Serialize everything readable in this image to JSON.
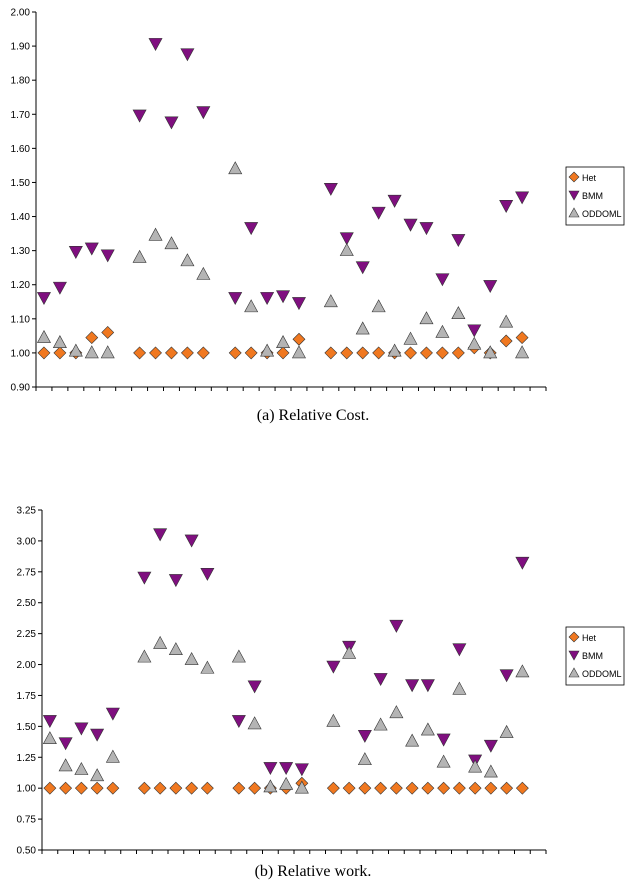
{
  "chart_data": [
    {
      "type": "scatter",
      "caption": "(a)  Relative Cost.",
      "y_ticks": [
        "2.00",
        "1.90",
        "1.80",
        "1.70",
        "1.60",
        "1.50",
        "1.40",
        "1.30",
        "1.20",
        "1.10",
        "1.00",
        "0.90"
      ],
      "ylim": [
        0.9,
        2.0
      ],
      "x": [
        1,
        2,
        3,
        4,
        5,
        7,
        8,
        9,
        10,
        11,
        13,
        14,
        15,
        16,
        17,
        19,
        20,
        21,
        22,
        23,
        24,
        25,
        26,
        27,
        28,
        29,
        30,
        31
      ],
      "legend_position": "right",
      "series": [
        {
          "name": "Het",
          "marker": "diamond",
          "color": "#f07820",
          "values": [
            1.0,
            1.0,
            1.0,
            1.045,
            1.06,
            1.0,
            1.0,
            1.0,
            1.0,
            1.0,
            1.0,
            1.0,
            1.0,
            1.0,
            1.04,
            1.0,
            1.0,
            1.0,
            1.0,
            1.0,
            1.0,
            1.0,
            1.0,
            1.0,
            1.015,
            1.0,
            1.035,
            1.045
          ]
        },
        {
          "name": "BMM",
          "marker": "triangle-down",
          "color": "#7f0f7f",
          "values": [
            1.16,
            1.19,
            1.295,
            1.305,
            1.285,
            1.695,
            1.905,
            1.675,
            1.875,
            1.705,
            1.16,
            1.365,
            1.16,
            1.165,
            1.145,
            1.48,
            1.335,
            1.25,
            1.41,
            1.445,
            1.375,
            1.365,
            1.215,
            1.33,
            1.065,
            1.195,
            1.43,
            1.455
          ]
        },
        {
          "name": "ODDOML",
          "marker": "triangle-up",
          "color": "#b4b4b4",
          "values": [
            1.045,
            1.03,
            1.005,
            1.0,
            1.0,
            1.28,
            1.345,
            1.32,
            1.27,
            1.23,
            1.54,
            1.135,
            1.005,
            1.03,
            1.0,
            1.15,
            1.3,
            1.07,
            1.135,
            1.005,
            1.04,
            1.1,
            1.06,
            1.115,
            1.025,
            1.0,
            1.09,
            1.0
          ]
        }
      ]
    },
    {
      "type": "scatter",
      "caption": "(b)  Relative work.",
      "y_ticks": [
        "3.25",
        "3.00",
        "2.75",
        "2.50",
        "2.25",
        "2.00",
        "1.75",
        "1.50",
        "1.25",
        "1.00",
        "0.75",
        "0.50"
      ],
      "ylim": [
        0.5,
        3.25
      ],
      "x": [
        1,
        2,
        3,
        4,
        5,
        7,
        8,
        9,
        10,
        11,
        13,
        14,
        15,
        16,
        17,
        19,
        20,
        21,
        22,
        23,
        24,
        25,
        26,
        27,
        28,
        29,
        30,
        31
      ],
      "legend_position": "right",
      "series": [
        {
          "name": "Het",
          "marker": "diamond",
          "color": "#f07820",
          "values": [
            1.0,
            1.0,
            1.0,
            1.0,
            1.0,
            1.0,
            1.0,
            1.0,
            1.0,
            1.0,
            1.0,
            1.0,
            1.0,
            1.0,
            1.04,
            1.0,
            1.0,
            1.0,
            1.0,
            1.0,
            1.0,
            1.0,
            1.0,
            1.0,
            1.0,
            1.0,
            1.0,
            1.0
          ]
        },
        {
          "name": "BMM",
          "marker": "triangle-down",
          "color": "#7f0f7f",
          "values": [
            1.54,
            1.36,
            1.48,
            1.43,
            1.6,
            2.7,
            3.05,
            2.68,
            3.0,
            2.73,
            1.54,
            1.82,
            1.16,
            1.16,
            1.15,
            1.98,
            2.14,
            1.42,
            1.88,
            2.31,
            1.83,
            1.83,
            1.39,
            2.12,
            1.22,
            1.34,
            1.91,
            2.82
          ]
        },
        {
          "name": "ODDOML",
          "marker": "triangle-up",
          "color": "#b4b4b4",
          "values": [
            1.4,
            1.18,
            1.15,
            1.1,
            1.25,
            2.06,
            2.17,
            2.12,
            2.04,
            1.97,
            2.06,
            1.52,
            1.01,
            1.03,
            1.0,
            1.54,
            2.09,
            1.23,
            1.51,
            1.61,
            1.38,
            1.47,
            1.21,
            1.8,
            1.17,
            1.13,
            1.45,
            1.94
          ]
        }
      ]
    }
  ]
}
